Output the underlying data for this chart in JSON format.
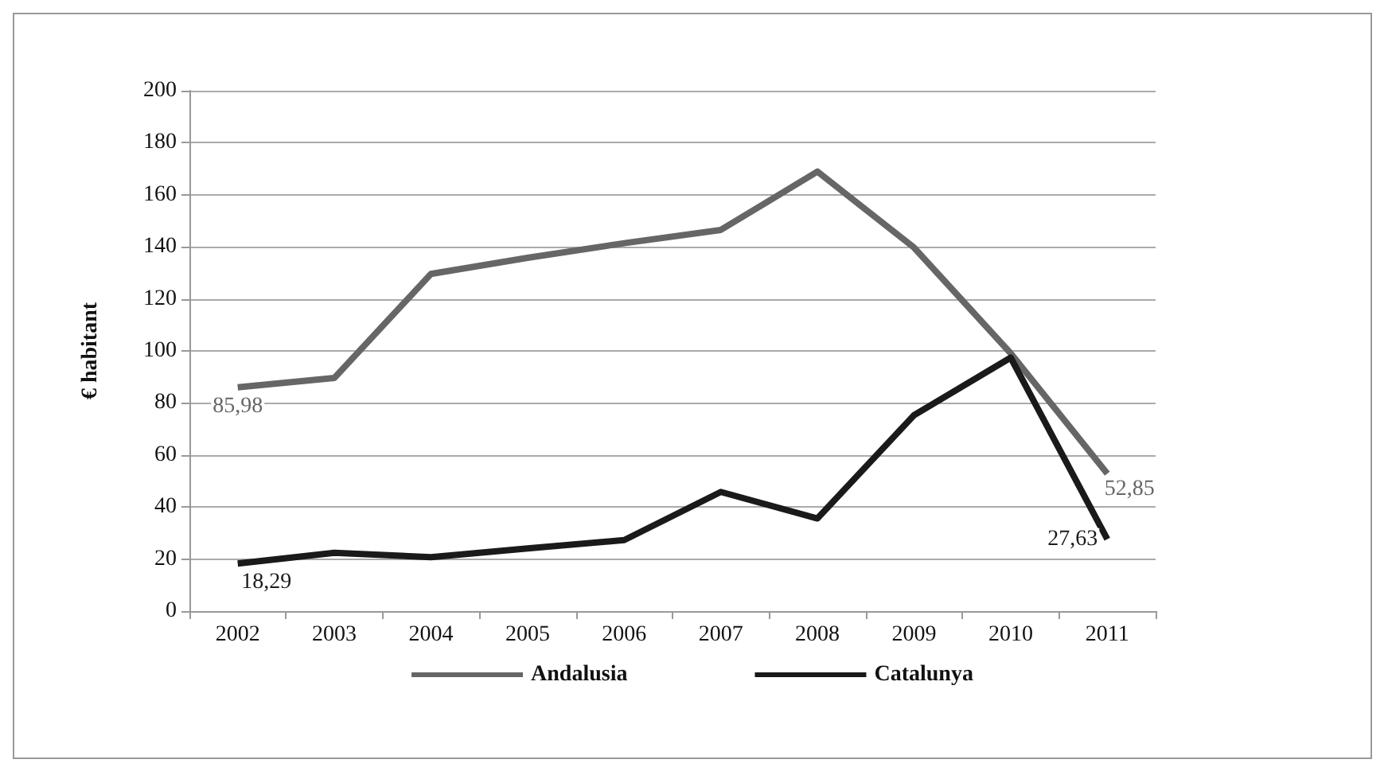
{
  "chart_data": {
    "type": "line",
    "ylabel": "€ habitant",
    "categories": [
      "2002",
      "2003",
      "2004",
      "2005",
      "2006",
      "2007",
      "2008",
      "2009",
      "2010",
      "2011"
    ],
    "series": [
      {
        "name": "Andalusia",
        "color": "#666666",
        "values": [
          85.98,
          89.6,
          129.6,
          135.8,
          141.4,
          146.5,
          168.9,
          139.7,
          99.1,
          52.85
        ],
        "value_labels": [
          "85,98",
          null,
          null,
          null,
          null,
          null,
          null,
          null,
          null,
          "52,85"
        ]
      },
      {
        "name": "Catalunya",
        "color": "#1a1a1a",
        "values": [
          18.29,
          22.4,
          20.7,
          24.1,
          27.3,
          45.8,
          35.6,
          75.3,
          97.4,
          27.63
        ],
        "value_labels": [
          "18,29",
          null,
          null,
          null,
          null,
          null,
          null,
          null,
          null,
          "27,63"
        ]
      }
    ],
    "ylim": [
      0,
      200
    ],
    "yticks": [
      0,
      20,
      40,
      60,
      80,
      100,
      120,
      140,
      160,
      180,
      200
    ],
    "grid": "y",
    "legend": "bottom",
    "marker": "none",
    "line_style": "solid"
  }
}
